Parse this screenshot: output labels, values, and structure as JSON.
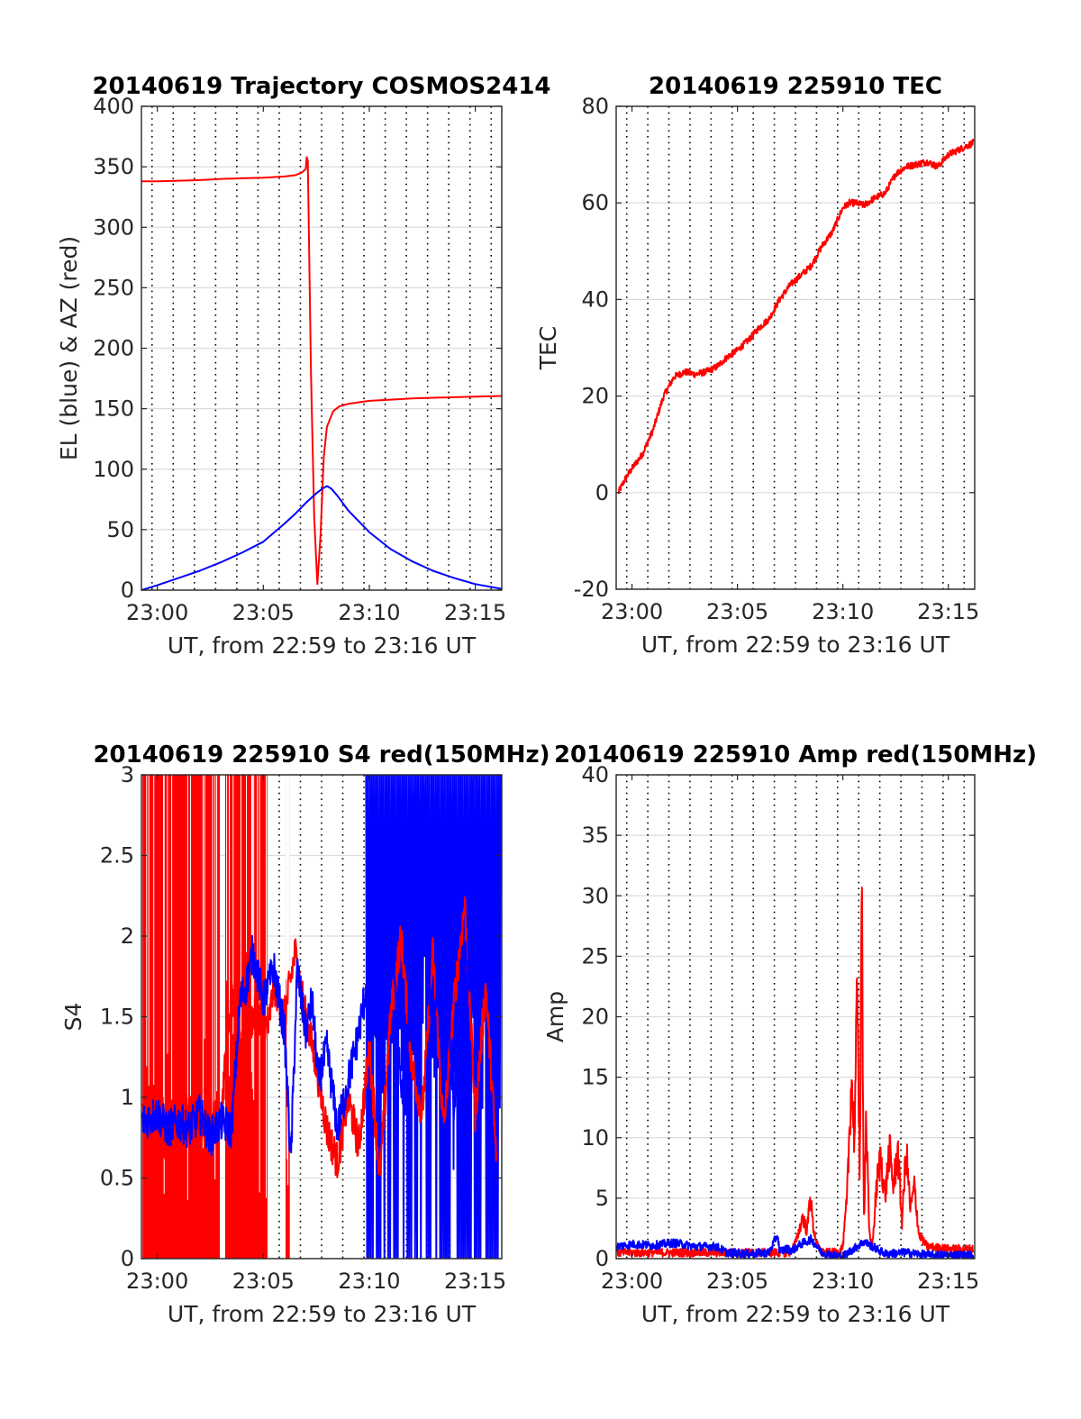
{
  "figure": {
    "background": "#ffffff",
    "grid_color": "#dcdcdc",
    "vgrid_style": "dotted",
    "axis_color": "#262626"
  },
  "chart_data": [
    {
      "id": "trajectory",
      "type": "line",
      "title": "20140619 Trajectory COSMOS2414",
      "xlabel": "UT, from 22:59 to 23:16 UT",
      "ylabel": "EL (blue) & AZ (red)",
      "xlim_minutes": [
        -0.75,
        16.25
      ],
      "ylim": [
        0,
        400
      ],
      "xticks": [
        {
          "v": 0,
          "label": "23:00"
        },
        {
          "v": 5,
          "label": "23:05"
        },
        {
          "v": 10,
          "label": "23:10"
        },
        {
          "v": 15,
          "label": "23:15"
        }
      ],
      "yticks": [
        {
          "v": 0,
          "label": "0"
        },
        {
          "v": 50,
          "label": "50"
        },
        {
          "v": 100,
          "label": "100"
        },
        {
          "v": 150,
          "label": "150"
        },
        {
          "v": 200,
          "label": "200"
        },
        {
          "v": 250,
          "label": "250"
        },
        {
          "v": 300,
          "label": "300"
        },
        {
          "v": 350,
          "label": "350"
        },
        {
          "v": 400,
          "label": "400"
        }
      ],
      "vgrid": [
        -0.25,
        0.75,
        1.75,
        2.75,
        3.75,
        4.75,
        5.75,
        6.75,
        7.75,
        8.75,
        9.75,
        10.75,
        11.75,
        12.75,
        13.75,
        14.75,
        15.75
      ],
      "grid": true,
      "series": [
        {
          "color": "#ff0000",
          "width": 2,
          "x": [
            -0.75,
            0,
            1,
            2,
            3,
            4,
            5,
            6,
            6.5,
            6.8,
            7.0,
            7.05,
            7.1,
            7.25,
            7.4,
            7.55,
            7.7,
            7.85,
            8.0,
            8.3,
            8.6,
            9,
            10,
            11,
            12,
            13,
            14,
            15,
            16.25
          ],
          "y": [
            338,
            338,
            338.5,
            339,
            340,
            340.5,
            341,
            342,
            343,
            345,
            348,
            358,
            355,
            180,
            60,
            5,
            45,
            110,
            135,
            148,
            152,
            154,
            156.5,
            157.5,
            158.5,
            159,
            159.5,
            160,
            160.5
          ]
        },
        {
          "color": "#0000ff",
          "width": 2,
          "x": [
            -0.75,
            0,
            1,
            2,
            3,
            4,
            5,
            6,
            6.5,
            7,
            7.5,
            7.8,
            8.0,
            8.2,
            8.5,
            9,
            10,
            11,
            12,
            13,
            14,
            15,
            16.25
          ],
          "y": [
            0,
            4,
            10,
            16,
            23,
            31,
            40,
            55,
            63,
            72,
            80,
            84,
            86,
            84,
            78,
            66,
            48,
            34,
            24,
            16,
            10,
            5,
            1
          ]
        }
      ]
    },
    {
      "id": "tec",
      "type": "line",
      "title": "20140619 225910 TEC",
      "xlabel": "UT, from 22:59 to 23:16 UT",
      "ylabel": "TEC",
      "xlim_minutes": [
        -0.75,
        16.25
      ],
      "ylim": [
        -20,
        80
      ],
      "xticks": [
        {
          "v": 0,
          "label": "23:00"
        },
        {
          "v": 5,
          "label": "23:05"
        },
        {
          "v": 10,
          "label": "23:10"
        },
        {
          "v": 15,
          "label": "23:15"
        }
      ],
      "yticks": [
        {
          "v": -20,
          "label": "-20"
        },
        {
          "v": 0,
          "label": "0"
        },
        {
          "v": 20,
          "label": "20"
        },
        {
          "v": 40,
          "label": "40"
        },
        {
          "v": 60,
          "label": "60"
        },
        {
          "v": 80,
          "label": "80"
        }
      ],
      "vgrid": [
        -0.25,
        0.75,
        1.75,
        2.75,
        3.75,
        4.75,
        5.75,
        6.75,
        7.75,
        8.75,
        9.75,
        10.75,
        11.75,
        12.75,
        13.75,
        14.75,
        15.75
      ],
      "grid": true,
      "series": [
        {
          "color": "#ff0000",
          "width": 2,
          "x": [
            -0.65,
            -0.3,
            0,
            0.5,
            1,
            1.5,
            2,
            2.5,
            3,
            3.5,
            4,
            4.5,
            5,
            5.5,
            6,
            6.5,
            7,
            7.5,
            8,
            8.5,
            9,
            9.5,
            10,
            10.3,
            10.6,
            11,
            11.5,
            12,
            12.5,
            13,
            13.5,
            14,
            14.5,
            15,
            15.5,
            16.2
          ],
          "y": [
            0,
            3,
            5,
            8,
            13,
            20,
            24,
            25,
            24.5,
            25,
            26,
            28,
            29.5,
            31.5,
            34,
            36,
            40,
            43,
            45,
            47,
            51,
            54,
            59,
            60,
            60,
            59.5,
            61,
            62,
            66,
            67.5,
            68,
            68.5,
            67.5,
            70,
            71,
            72.5
          ]
        }
      ]
    },
    {
      "id": "s4",
      "type": "line",
      "title": "20140619 225910 S4 red(150MHz)",
      "xlabel": "UT, from 22:59 to 23:16 UT",
      "ylabel": "S4",
      "xlim_minutes": [
        -0.75,
        16.25
      ],
      "ylim": [
        0,
        3
      ],
      "xticks": [
        {
          "v": 0,
          "label": "23:00"
        },
        {
          "v": 5,
          "label": "23:05"
        },
        {
          "v": 10,
          "label": "23:10"
        },
        {
          "v": 15,
          "label": "23:15"
        }
      ],
      "yticks": [
        {
          "v": 0,
          "label": "0"
        },
        {
          "v": 0.5,
          "label": "0.5"
        },
        {
          "v": 1,
          "label": "1"
        },
        {
          "v": 1.5,
          "label": "1.5"
        },
        {
          "v": 2,
          "label": "2"
        },
        {
          "v": 2.5,
          "label": "2.5"
        },
        {
          "v": 3,
          "label": "3"
        }
      ],
      "vgrid": [
        -0.25,
        0.75,
        1.75,
        2.75,
        3.75,
        4.75,
        5.75,
        6.75,
        7.75,
        8.75,
        9.75,
        10.75,
        11.75,
        12.75,
        13.75,
        14.75,
        15.75
      ],
      "grid": true,
      "series": [
        {
          "color": "#ff0000",
          "width": 2,
          "x": [
            -0.7,
            0.5,
            1.0,
            2.0,
            3.0,
            3.5,
            4.0,
            4.5,
            5.0,
            5.2,
            5.5,
            6.0,
            6.5,
            7.0,
            7.5,
            8.0,
            8.5,
            9.0,
            9.5,
            10.0,
            10.5,
            11.0,
            11.5,
            12.0,
            12.5,
            13.0,
            13.5,
            14.0,
            14.5,
            15.0,
            15.5,
            16.0
          ],
          "y": [
            0.85,
            0.7,
            1.0,
            0.8,
            0.9,
            1.6,
            1.3,
            1.5,
            1.5,
            1.4,
            1.7,
            1.5,
            1.9,
            1.5,
            1.2,
            0.8,
            0.6,
            1.0,
            0.7,
            1.3,
            0.5,
            1.5,
            2.0,
            1.2,
            0.9,
            1.9,
            0.8,
            1.6,
            2.2,
            0.9,
            1.7,
            0.6
          ]
        },
        {
          "color": "#0000ff",
          "width": 2,
          "x": [
            -0.7,
            0,
            0.5,
            1.0,
            1.5,
            2.0,
            2.5,
            3.0,
            3.5,
            3.9,
            4.2,
            4.5,
            5.0,
            5.5,
            6.0,
            6.3,
            6.6,
            7.0,
            7.3,
            7.6,
            8.0,
            8.5,
            9.0,
            9.5,
            10.0,
            10.5,
            11.0,
            11.5,
            12.0,
            12.5,
            13.0,
            13.5,
            14.0,
            14.5,
            15.0,
            15.5,
            16.0
          ],
          "y": [
            0.85,
            0.9,
            0.8,
            0.85,
            0.8,
            0.9,
            0.75,
            0.85,
            0.8,
            1.6,
            1.7,
            1.9,
            1.6,
            1.8,
            1.4,
            0.6,
            1.8,
            1.4,
            1.6,
            1.1,
            1.3,
            0.8,
            1.1,
            1.4,
            1.8,
            1.2,
            2.2,
            1.0,
            1.6,
            2.5,
            1.3,
            2.0,
            0.9,
            1.9,
            1.5,
            2.3,
            1.2
          ]
        }
      ],
      "fill_bands_minutes": {
        "red": [
          [
            -0.7,
            2.95
          ],
          [
            3.2,
            5.2
          ],
          [
            6.05,
            6.25
          ]
        ],
        "blue": [
          [
            9.85,
            16.2
          ]
        ]
      }
    },
    {
      "id": "amp",
      "type": "line",
      "title": "20140619 225910 Amp red(150MHz)",
      "xlabel": "UT, from 22:59 to 23:16 UT",
      "ylabel": "Amp",
      "xlim_minutes": [
        -0.75,
        16.25
      ],
      "ylim": [
        0,
        40
      ],
      "xticks": [
        {
          "v": 0,
          "label": "23:00"
        },
        {
          "v": 5,
          "label": "23:05"
        },
        {
          "v": 10,
          "label": "23:10"
        },
        {
          "v": 15,
          "label": "23:15"
        }
      ],
      "yticks": [
        {
          "v": 0,
          "label": "0"
        },
        {
          "v": 5,
          "label": "5"
        },
        {
          "v": 10,
          "label": "10"
        },
        {
          "v": 15,
          "label": "15"
        },
        {
          "v": 20,
          "label": "20"
        },
        {
          "v": 25,
          "label": "25"
        },
        {
          "v": 30,
          "label": "30"
        },
        {
          "v": 35,
          "label": "35"
        },
        {
          "v": 40,
          "label": "40"
        }
      ],
      "vgrid": [
        -0.25,
        0.75,
        1.75,
        2.75,
        3.75,
        4.75,
        5.75,
        6.75,
        7.75,
        8.75,
        9.75,
        10.75,
        11.75,
        12.75,
        13.75,
        14.75,
        15.75
      ],
      "grid": true,
      "series": [
        {
          "color": "#ff0000",
          "width": 2,
          "x": [
            -0.7,
            7.5,
            7.8,
            8.1,
            8.3,
            8.45,
            8.6,
            8.8,
            9.0,
            9.8,
            10.0,
            10.2,
            10.4,
            10.55,
            10.7,
            10.8,
            10.9,
            11.0,
            11.1,
            11.25,
            11.4,
            11.6,
            11.8,
            12.0,
            12.2,
            12.4,
            12.6,
            12.8,
            13.0,
            13.2,
            13.4,
            13.6,
            13.8,
            14.0,
            15.0,
            16.2
          ],
          "y": [
            0.5,
            0.5,
            1.5,
            3.5,
            2.2,
            5.3,
            2.5,
            1.0,
            0.5,
            0.5,
            1.0,
            5.0,
            15.0,
            10.0,
            23.0,
            6.0,
            30.0,
            3.0,
            12.0,
            2.0,
            1.0,
            6.0,
            8.5,
            5.0,
            9.0,
            6.0,
            9.0,
            3.0,
            9.0,
            4.0,
            6.0,
            2.0,
            1.5,
            1.0,
            0.8,
            0.8
          ]
        },
        {
          "color": "#0000ff",
          "width": 2,
          "x": [
            -0.7,
            0,
            1,
            2,
            3,
            4,
            4.5,
            5.5,
            6.5,
            6.9,
            7.0,
            7.3,
            7.6,
            8.0,
            8.5,
            9.0,
            9.5,
            10.0,
            10.5,
            11.0,
            11.5,
            12.0,
            13.0,
            14.0,
            15.0,
            16.2
          ],
          "y": [
            1.0,
            1.2,
            1.1,
            1.3,
            1.0,
            1.0,
            0.5,
            0.4,
            0.5,
            2.0,
            0.6,
            0.8,
            0.7,
            1.2,
            1.6,
            0.5,
            0.3,
            0.2,
            0.8,
            1.4,
            0.9,
            0.4,
            0.5,
            0.3,
            0.3,
            0.3
          ]
        }
      ]
    }
  ]
}
